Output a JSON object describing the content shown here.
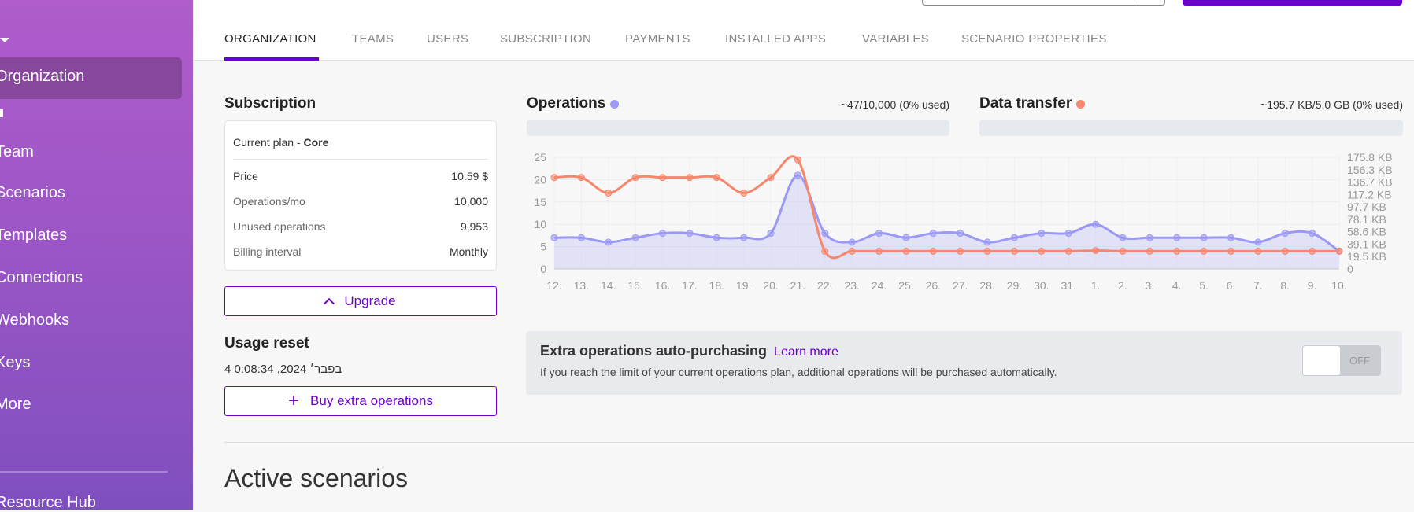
{
  "sidebar": {
    "items": [
      {
        "label": "Organization"
      },
      {
        "label": "Team"
      },
      {
        "label": "Scenarios"
      },
      {
        "label": "Templates"
      },
      {
        "label": "Connections"
      },
      {
        "label": "Webhooks"
      },
      {
        "label": "Keys"
      },
      {
        "label": "More"
      },
      {
        "label": "Resource Hub"
      }
    ]
  },
  "tabs": [
    "ORGANIZATION",
    "TEAMS",
    "USERS",
    "SUBSCRIPTION",
    "PAYMENTS",
    "INSTALLED APPS",
    "VARIABLES",
    "SCENARIO PROPERTIES"
  ],
  "subscription": {
    "title": "Subscription",
    "plan_prefix": "Current plan - ",
    "plan": "Core",
    "rows": [
      {
        "k": "Price",
        "v": "10.59 $"
      },
      {
        "k": "Operations/mo",
        "v": "10,000"
      },
      {
        "k": "Unused operations",
        "v": "9,953"
      },
      {
        "k": "Billing interval",
        "v": "Monthly"
      }
    ],
    "upgrade_label": "Upgrade"
  },
  "usage_reset": {
    "title": "Usage reset",
    "date": "4 בפבר׳ 2024, 0:08:34",
    "buy_label": "Buy extra operations"
  },
  "operations": {
    "title": "Operations",
    "usage": "~47/10,000 (0% used)",
    "color": "#9b99f5",
    "used_fraction": 0
  },
  "data_transfer": {
    "title": "Data transfer",
    "usage": "~195.7 KB/5.0 GB (0% used)",
    "color": "#f7876c",
    "used_fraction": 0
  },
  "chart_data": {
    "type": "line",
    "categories": [
      "12.",
      "13.",
      "14.",
      "15.",
      "16.",
      "17.",
      "18.",
      "19.",
      "20.",
      "21.",
      "22.",
      "23.",
      "24.",
      "25.",
      "26.",
      "27.",
      "28.",
      "29.",
      "30.",
      "31.",
      "1.",
      "2.",
      "3.",
      "4.",
      "5.",
      "6.",
      "7.",
      "8.",
      "9.",
      "10."
    ],
    "left_ylim": [
      0,
      25
    ],
    "left_ticks": [
      "0",
      "5",
      "10",
      "15",
      "20",
      "25"
    ],
    "right_ylim_kb": [
      0,
      175.8
    ],
    "right_ticks": [
      "0",
      "19.5 KB",
      "39.1 KB",
      "58.6 KB",
      "78.1 KB",
      "97.7 KB",
      "117.2 KB",
      "136.7 KB",
      "156.3 KB",
      "175.8 KB"
    ],
    "grid": true,
    "series": [
      {
        "name": "Operations",
        "axis": "left",
        "color": "#9b99f5",
        "fill": true,
        "values": [
          7,
          7,
          6,
          7,
          8,
          8,
          7,
          7,
          8,
          21,
          8,
          6,
          8,
          7,
          8,
          8,
          6,
          7,
          8,
          8,
          10,
          7,
          7,
          7,
          7,
          7,
          6,
          8,
          8,
          4
        ]
      },
      {
        "name": "Data transfer",
        "axis": "right",
        "unit": "KB",
        "color": "#f7876c",
        "values": [
          144,
          144,
          119.5,
          144,
          144,
          144,
          144,
          119.5,
          144,
          172,
          28,
          28,
          28,
          28,
          28,
          28,
          28,
          28,
          28,
          28,
          29,
          28,
          28,
          28,
          28,
          28,
          28,
          28,
          28,
          28
        ]
      }
    ]
  },
  "auto_purchase": {
    "title": "Extra operations auto-purchasing",
    "learn_more": "Learn more",
    "desc": "If you reach the limit of your current operations plan, additional operations will be purchased automatically.",
    "toggle": "OFF"
  },
  "active_scenarios": {
    "title": "Active scenarios"
  }
}
